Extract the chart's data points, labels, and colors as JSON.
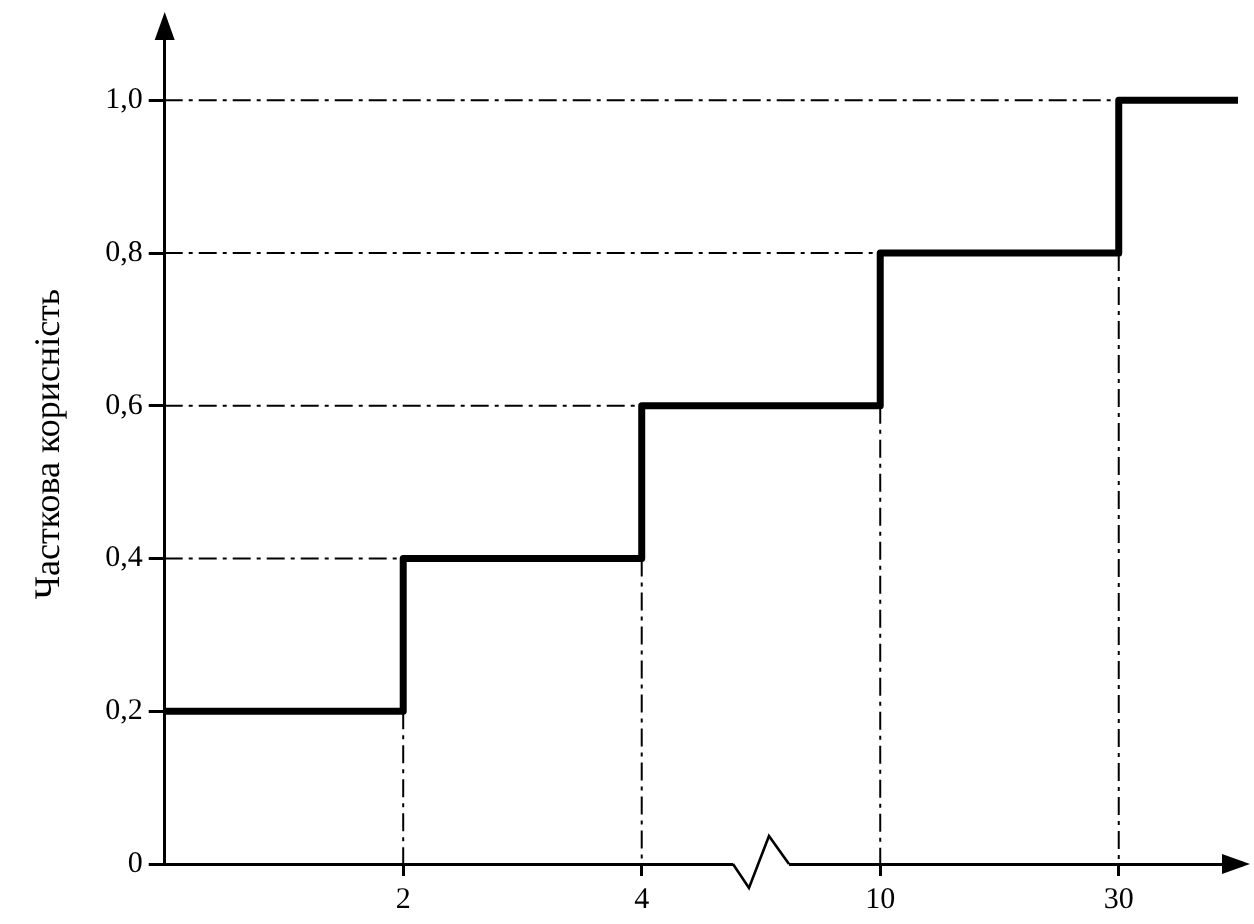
{
  "chart_data": {
    "type": "step",
    "ylabel": "Часткова корисність",
    "categories": [
      null,
      "2",
      "4",
      "10",
      "30"
    ],
    "values": [
      0.2,
      0.4,
      0.6,
      0.8,
      1.0
    ],
    "color": "#000000",
    "ylim": [
      0,
      1.1
    ],
    "yticks": [
      {
        "value": 0,
        "label": "0"
      },
      {
        "value": 0.2,
        "label": "0,2"
      },
      {
        "value": 0.4,
        "label": "0,4"
      },
      {
        "value": 0.6,
        "label": "0,6"
      },
      {
        "value": 0.8,
        "label": "0,8"
      },
      {
        "value": 1.0,
        "label": "1,0"
      }
    ],
    "ref_lines": [
      {
        "axis": "y",
        "value": 0.4,
        "line_style": "dashed"
      },
      {
        "axis": "y",
        "value": 0.6,
        "line_style": "dashed"
      },
      {
        "axis": "y",
        "value": 0.8,
        "line_style": "dashed"
      },
      {
        "axis": "y",
        "value": 1.0,
        "line_style": "dashed"
      },
      {
        "axis": "x",
        "value": "2",
        "line_style": "dashed"
      },
      {
        "axis": "x",
        "value": "4",
        "line_style": "dashed"
      },
      {
        "axis": "x",
        "value": "10",
        "line_style": "dashed"
      },
      {
        "axis": "x",
        "value": "30",
        "line_style": "dashed"
      }
    ],
    "legend": false,
    "line_style": "solid",
    "marker": "none"
  }
}
